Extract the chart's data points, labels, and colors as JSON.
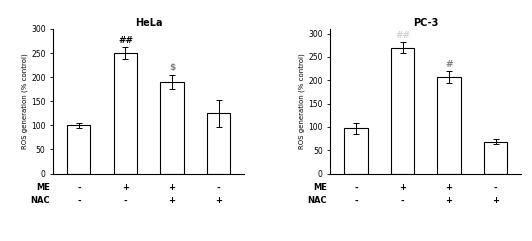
{
  "hela": {
    "title": "HeLa",
    "values": [
      100,
      250,
      190,
      125
    ],
    "errors": [
      5,
      12,
      15,
      28
    ],
    "annotations": [
      "",
      "##",
      "$",
      ""
    ],
    "annot_colors": [
      "",
      "black",
      "gray",
      ""
    ],
    "ylim": [
      0,
      300
    ],
    "yticks": [
      0,
      50,
      100,
      150,
      200,
      250,
      300
    ],
    "ylabel": "ROS generation (% control)"
  },
  "pc3": {
    "title": "PC-3",
    "values": [
      97,
      270,
      207,
      68
    ],
    "errors": [
      12,
      12,
      12,
      5
    ],
    "annotations": [
      "",
      "##",
      "#",
      ""
    ],
    "annot_colors": [
      "",
      "lightgray",
      "gray",
      ""
    ],
    "ylim": [
      0,
      310
    ],
    "yticks": [
      0,
      50,
      100,
      150,
      200,
      250,
      300
    ],
    "ylabel": "ROS generation (% control)"
  },
  "x_labels_ME": [
    "-",
    "+",
    "+",
    "-"
  ],
  "x_labels_NAC": [
    "-",
    "-",
    "+",
    "+"
  ],
  "bar_color": "white",
  "bar_edgecolor": "black",
  "bar_linewidth": 0.8,
  "background_color": "white",
  "title_fontsize": 7,
  "ylabel_fontsize": 5.0,
  "tick_fontsize": 5.5,
  "annot_fontsize": 6.5,
  "label_fontsize": 6.0,
  "bar_width": 0.5
}
